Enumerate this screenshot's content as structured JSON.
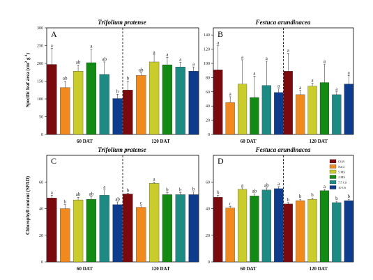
{
  "colors": [
    "#7b0a0f",
    "#f08a1e",
    "#c9cc2b",
    "#138a13",
    "#1d8a84",
    "#0e3c8c"
  ],
  "chart_data": [
    {
      "panel": "A",
      "type": "bar",
      "title": "Trifolium pratense",
      "ylabel": "Specific leaf area (cm2 g-1)",
      "ylim": [
        0,
        300
      ],
      "yticks": [
        0,
        50,
        100,
        150,
        200,
        250,
        300
      ],
      "groups": [
        "60 DAT",
        "120 DAT"
      ],
      "series_names": [
        "CON",
        "NaCl",
        "5 MS",
        "2 MS",
        "7.5 CS",
        "10 CS"
      ],
      "values": [
        [
          197,
          132,
          178,
          202,
          169,
          101
        ],
        [
          125,
          166,
          204,
          196,
          190,
          178
        ]
      ],
      "errors": [
        [
          45,
          18,
          17,
          38,
          35,
          12
        ],
        [
          25,
          8,
          20,
          21,
          13,
          12
        ]
      ],
      "letters": [
        [
          "a",
          "ab",
          "ab",
          "a",
          "ab",
          "b"
        ],
        [
          "b",
          "ab",
          "a",
          "a",
          "a",
          "a"
        ]
      ]
    },
    {
      "panel": "B",
      "type": "bar",
      "title": "Festuca arundinacea",
      "ylabel": "",
      "ylim": [
        0,
        150
      ],
      "yticks": [
        0,
        20,
        40,
        60,
        80,
        100,
        120,
        140
      ],
      "groups": [
        "60 DAT",
        "120 DAT"
      ],
      "series_names": [
        "CON",
        "NaCl",
        "5 MS",
        "2 MS",
        "7.5 CS",
        "10 CS"
      ],
      "values": [
        [
          91,
          45,
          71,
          52,
          69,
          59
        ],
        [
          89,
          56,
          68,
          73,
          56,
          71
        ]
      ],
      "errors": [
        [
          34,
          8,
          34,
          30,
          34,
          5
        ],
        [
          25,
          6,
          4,
          26,
          4,
          12
        ]
      ],
      "letters": [
        [
          "a",
          "a",
          "a",
          "a",
          "a",
          "a"
        ],
        [
          "a",
          "a",
          "a",
          "a",
          "a",
          "a"
        ]
      ]
    },
    {
      "panel": "C",
      "type": "bar",
      "title": "Trifolium pratense",
      "ylabel": "Chlorophyll content (SPAD)",
      "ylim": [
        0,
        80
      ],
      "yticks": [
        0,
        20,
        40,
        60
      ],
      "groups": [
        "60 DAT",
        "120 DAT"
      ],
      "series_names": [
        "CON",
        "NaCl",
        "5 MS",
        "2 MS",
        "7.5 CS",
        "10 CS"
      ],
      "values": [
        [
          48,
          40,
          46.5,
          47,
          50,
          43
        ],
        [
          51,
          41,
          59,
          50.5,
          50.5,
          50.5
        ]
      ],
      "errors": [
        [
          2,
          3,
          2,
          2,
          4,
          2
        ],
        [
          0.5,
          1,
          1,
          1.5,
          1.5,
          2
        ]
      ],
      "letters": [
        [
          "a",
          "b",
          "ab",
          "ab",
          "a",
          "ab"
        ],
        [
          "b",
          "c",
          "a",
          "b",
          "b",
          "b"
        ]
      ]
    },
    {
      "panel": "D",
      "type": "bar",
      "title": "Festuca arundinacea",
      "ylabel": "",
      "ylim": [
        0,
        80
      ],
      "yticks": [
        0,
        20,
        40,
        60
      ],
      "groups": [
        "60 DAT",
        "120 DAT"
      ],
      "series_names": [
        "CON",
        "NaCl",
        "5 MS",
        "2 MS",
        "7.5 CS",
        "10 CS"
      ],
      "values": [
        [
          48.5,
          40.5,
          54.5,
          49.5,
          54,
          55
        ],
        [
          43.5,
          46,
          47,
          53.5,
          44.5,
          46
        ]
      ],
      "errors": [
        [
          1.5,
          1,
          1,
          1.5,
          1.5,
          1.5
        ],
        [
          1,
          1,
          1,
          1,
          1,
          1
        ]
      ],
      "letters": [
        [
          "b",
          "c",
          "a",
          "ab",
          "ab",
          "a"
        ],
        [
          "b",
          "b",
          "b",
          "a",
          "b",
          "b"
        ]
      ],
      "legend": [
        "CON",
        "NaCl",
        "5 MS",
        "2 MS",
        "7.5 CS",
        "10 CS"
      ],
      "legend_position": "top-right"
    }
  ]
}
